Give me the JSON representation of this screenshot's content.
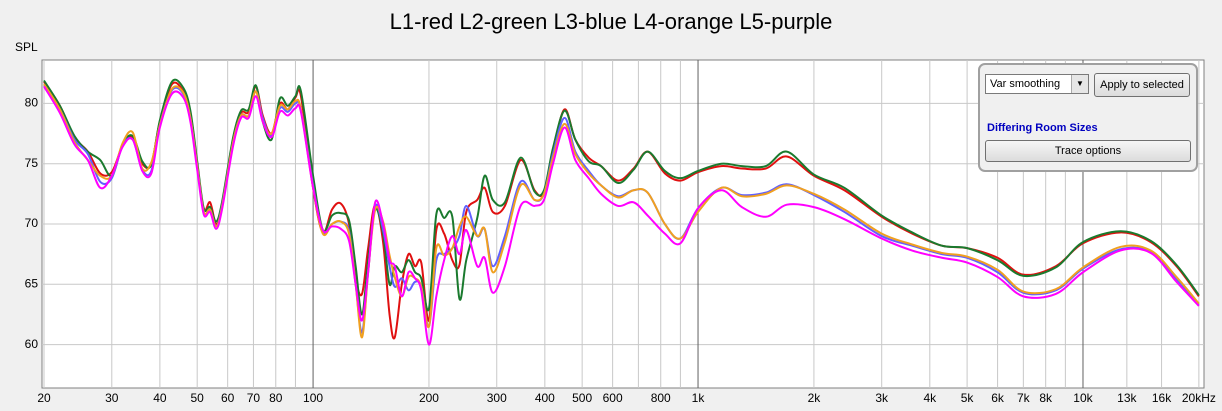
{
  "chart_data": {
    "type": "line",
    "title": "L1-red L2-green L3-blue L4-orange L5-purple",
    "ylabel": "SPL",
    "log_x": true,
    "grid": true,
    "xlim": [
      20,
      20500
    ],
    "ylim": [
      56.4,
      83.6
    ],
    "yticks": [
      60,
      65,
      70,
      75,
      80
    ],
    "xticks": [
      20,
      30,
      40,
      50,
      60,
      70,
      80,
      100,
      200,
      300,
      400,
      500,
      600,
      800,
      {
        "value": 1000,
        "label": "1k"
      },
      {
        "value": 2000,
        "label": "2k"
      },
      {
        "value": 3000,
        "label": "3k"
      },
      {
        "value": 4000,
        "label": "4k"
      },
      {
        "value": 5000,
        "label": "5k"
      },
      {
        "value": 6000,
        "label": "6k"
      },
      {
        "value": 7000,
        "label": "7k"
      },
      {
        "value": 8000,
        "label": "8k"
      },
      {
        "value": 10000,
        "label": "10k"
      },
      {
        "value": 13000,
        "label": "13k"
      },
      {
        "value": 16000,
        "label": "16k"
      },
      {
        "value": 20000,
        "label": "20kHz"
      }
    ],
    "x_minor_ticks": [
      90,
      700,
      900,
      9000
    ],
    "x": [
      20,
      22,
      24,
      26,
      28,
      30,
      32,
      34,
      36,
      38,
      40,
      43,
      46,
      48,
      50,
      52,
      54,
      56,
      58,
      62,
      65,
      68,
      71,
      74,
      78,
      82,
      86,
      90,
      93,
      100,
      106,
      112,
      118,
      124,
      129,
      134,
      139,
      145,
      152,
      158,
      163,
      170,
      177,
      184,
      191,
      200,
      209,
      219,
      230,
      240,
      250,
      267,
      279,
      293,
      315,
      346,
      376,
      398,
      420,
      450,
      480,
      520,
      560,
      620,
      680,
      740,
      820,
      900,
      1000,
      1150,
      1300,
      1500,
      1700,
      2000,
      2400,
      3000,
      3600,
      4300,
      5000,
      6000,
      7000,
      8500,
      10000,
      12500,
      15000,
      17500,
      20000
    ],
    "series": [
      {
        "name": "L1",
        "color": "#e01010",
        "values": [
          81.8,
          79.8,
          77.2,
          76,
          74.2,
          74.3,
          76.5,
          77.2,
          75,
          75,
          78.5,
          81.6,
          81,
          79.2,
          75,
          71.2,
          71.8,
          70,
          71.5,
          77,
          79.2,
          79.3,
          81.4,
          79,
          77.5,
          80,
          79.5,
          80.5,
          80.6,
          73,
          69.3,
          71.2,
          71.7,
          70,
          65.5,
          64.2,
          68,
          71.6,
          68.5,
          62.5,
          60.6,
          65,
          67.5,
          66.5,
          66.8,
          62,
          69.5,
          69.2,
          67,
          66.6,
          71,
          72,
          73,
          71,
          71.5,
          75.3,
          72.8,
          72.6,
          76,
          79.5,
          77,
          75.5,
          74.8,
          73.6,
          74.6,
          76,
          74.2,
          73.6,
          74.3,
          74.8,
          74.6,
          74.6,
          75.6,
          74,
          72.8,
          70.6,
          69.2,
          68.2,
          68,
          67.2,
          65.8,
          66.5,
          68.4,
          69.3,
          68.5,
          66.5,
          64
        ]
      },
      {
        "name": "L2",
        "color": "#1a7a2e",
        "values": [
          81.9,
          79.8,
          77.3,
          76,
          75.3,
          74,
          76.6,
          77.3,
          75.2,
          74.9,
          78.6,
          81.8,
          81.3,
          79.4,
          75.2,
          71.3,
          71.4,
          70.2,
          71.8,
          77.2,
          79.4,
          79.5,
          81.5,
          78.5,
          77,
          80.4,
          79.8,
          80.6,
          81,
          74,
          69.5,
          70.7,
          70.9,
          70.3,
          66.5,
          62.5,
          67,
          71.2,
          69.2,
          65,
          66.5,
          66,
          67,
          66,
          65.5,
          63,
          70.8,
          70.5,
          70.6,
          63.8,
          67,
          70.5,
          74,
          72,
          71.8,
          75.5,
          72.7,
          72.8,
          76.3,
          79.4,
          77,
          75.2,
          74.8,
          73.4,
          74.5,
          76,
          74.4,
          73.8,
          74.4,
          75,
          74.8,
          74.8,
          76,
          74.1,
          73,
          70.7,
          69.3,
          68.2,
          68,
          67,
          65.7,
          66.4,
          68.5,
          69.4,
          68.6,
          66.6,
          64.1
        ]
      },
      {
        "name": "L3",
        "color": "#6060ff",
        "values": [
          81.5,
          79.5,
          77,
          75.8,
          73.5,
          73.8,
          76.5,
          77,
          74.5,
          74.4,
          78.2,
          81.1,
          80.8,
          78.8,
          74.8,
          71,
          71.2,
          69.8,
          71.5,
          76.8,
          79,
          79,
          81,
          78.8,
          77.3,
          79.6,
          79.3,
          80,
          79.5,
          73.2,
          69.3,
          70,
          70.2,
          69.4,
          65,
          61,
          66,
          71.5,
          69.5,
          66.5,
          64.8,
          65.5,
          64.5,
          65.2,
          64.8,
          61.5,
          67,
          67.5,
          68,
          69,
          71.5,
          69,
          69.6,
          66.5,
          69,
          73.5,
          72,
          72.5,
          75.8,
          78.8,
          76,
          74.4,
          73.2,
          72.3,
          72.8,
          72.6,
          70,
          68.8,
          71.3,
          73,
          72.4,
          72.6,
          73.3,
          72.4,
          71,
          69,
          68.2,
          67.5,
          67.2,
          66,
          64.3,
          64.5,
          66.3,
          67.9,
          67.7,
          65.4,
          63.3
        ]
      },
      {
        "name": "L4",
        "color": "#f0a020",
        "values": [
          81.6,
          79.5,
          76.8,
          75.3,
          74,
          74,
          76.7,
          77.6,
          74.6,
          75.1,
          78.2,
          81.2,
          80.9,
          78.8,
          74.8,
          71,
          71.2,
          69.8,
          71.4,
          76.8,
          79,
          79,
          81,
          78.5,
          77.5,
          79.8,
          79.5,
          80.2,
          79.5,
          73,
          69.2,
          70,
          70.2,
          69.2,
          65,
          60.6,
          66,
          71.2,
          70.2,
          67.4,
          65.6,
          64,
          65.6,
          65.5,
          64.8,
          61.5,
          68,
          67.4,
          68,
          69.8,
          70.6,
          69,
          69.6,
          66,
          68.5,
          73.2,
          72,
          72.5,
          75.5,
          78.3,
          75.8,
          74.2,
          73.2,
          72.2,
          72.8,
          72.6,
          70,
          68.8,
          71,
          73,
          72.3,
          72.5,
          73.2,
          72.5,
          71.2,
          69.2,
          68.3,
          67.6,
          67.3,
          66.2,
          64.4,
          64.6,
          66.4,
          68.1,
          67.8,
          65.6,
          63.4
        ]
      },
      {
        "name": "L5",
        "color": "#ff00ff",
        "values": [
          81.4,
          79.2,
          76.6,
          75.3,
          73,
          74,
          76.4,
          77,
          74.4,
          74.2,
          78,
          80.8,
          80.5,
          78.5,
          74.5,
          70.8,
          71,
          69.6,
          71.2,
          76.5,
          78.8,
          78.8,
          80.6,
          78.5,
          77.2,
          79.3,
          79,
          79.6,
          79.3,
          73,
          69.5,
          69.8,
          69.6,
          68.6,
          65,
          62,
          66,
          71.8,
          70,
          67,
          66.5,
          64,
          66,
          65.5,
          64.5,
          60,
          64,
          67,
          69,
          67.5,
          69.5,
          66.5,
          67.2,
          64.3,
          66.5,
          71.5,
          71.5,
          72,
          75,
          78,
          75.3,
          73.8,
          72.5,
          71.5,
          71.8,
          70.7,
          69.2,
          68.4,
          71.3,
          72.8,
          71.4,
          70.6,
          71.6,
          71.4,
          70.4,
          68.8,
          67.8,
          67.2,
          66.8,
          65.6,
          64,
          64.2,
          66,
          67.8,
          67.6,
          65.2,
          63.2
        ]
      }
    ]
  },
  "controls": {
    "smoothing": "Var smoothing",
    "apply_button": "Apply to selected",
    "info": "Differing Room Sizes",
    "trace_button": "Trace options"
  }
}
